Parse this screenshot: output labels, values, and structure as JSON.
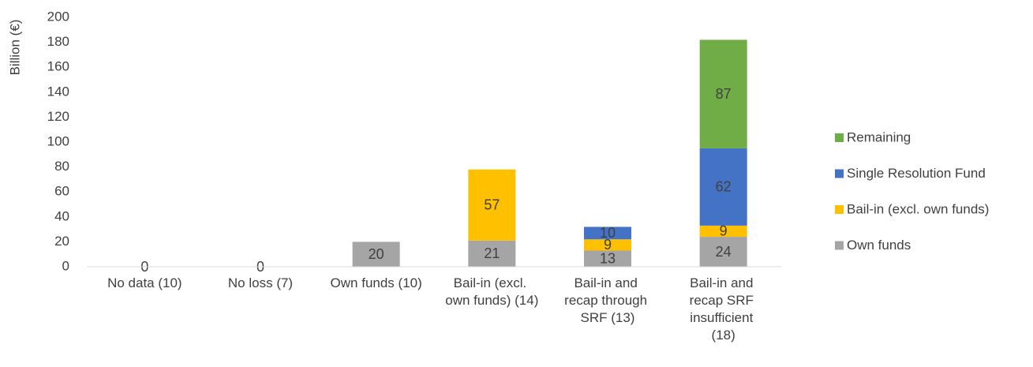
{
  "chart_data": {
    "type": "stacked_bar",
    "y_label": "Billion (€)",
    "categories": [
      "No data (10)",
      "No loss (7)",
      "Own funds (10)",
      "Bail-in (excl. own funds) (14)",
      "Bail-in and recap through SRF (13)",
      "Bail-in and recap SRF insufficient (18)"
    ],
    "series": [
      {
        "name": "Own funds",
        "color": "#a5a5a5",
        "values": [
          0,
          0,
          20,
          21,
          13,
          24
        ]
      },
      {
        "name": "Bail-in (excl. own funds)",
        "color": "#ffc000",
        "values": [
          null,
          null,
          null,
          57,
          9,
          9
        ]
      },
      {
        "name": "Single Resolution Fund",
        "color": "#4472c4",
        "values": [
          null,
          null,
          null,
          null,
          10,
          62
        ]
      },
      {
        "name": "Remaining",
        "color": "#70ad47",
        "values": [
          null,
          null,
          null,
          null,
          null,
          87
        ]
      }
    ],
    "ylim": [
      0,
      200
    ],
    "yticks": [
      0,
      20,
      40,
      60,
      80,
      100,
      120,
      140,
      160,
      180,
      200
    ],
    "grid": false,
    "legend": "right"
  }
}
